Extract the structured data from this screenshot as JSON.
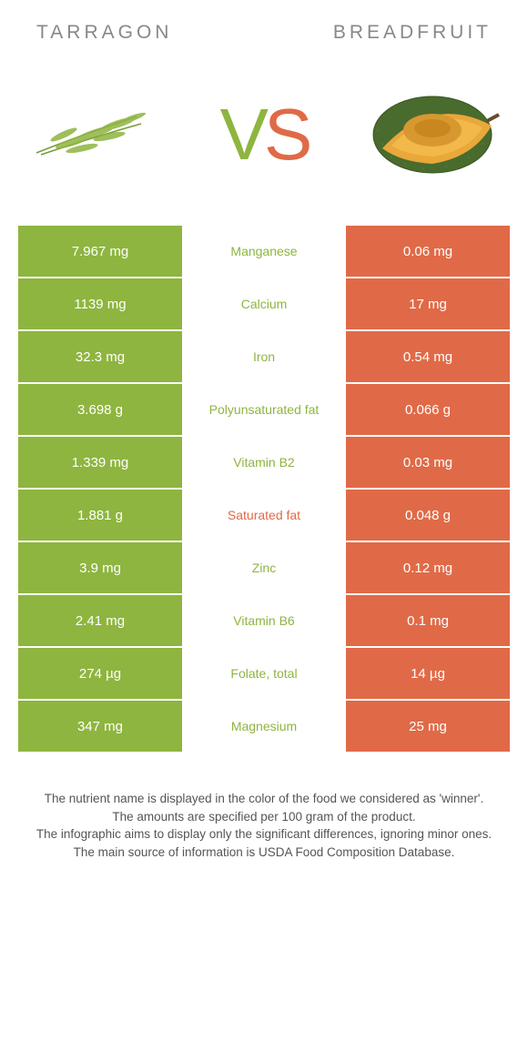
{
  "header": {
    "left": "Tarragon",
    "right": "Breadfruit"
  },
  "colors": {
    "left": "#8eb53f",
    "right": "#e06a47",
    "winner_left": "#8eb53f",
    "winner_right": "#e06a47"
  },
  "vs": {
    "v": "V",
    "s": "S"
  },
  "rows": [
    {
      "left": "7.967 mg",
      "label": "Manganese",
      "right": "0.06 mg",
      "winner": "left"
    },
    {
      "left": "1139 mg",
      "label": "Calcium",
      "right": "17 mg",
      "winner": "left"
    },
    {
      "left": "32.3 mg",
      "label": "Iron",
      "right": "0.54 mg",
      "winner": "left"
    },
    {
      "left": "3.698 g",
      "label": "Polyunsaturated fat",
      "right": "0.066 g",
      "winner": "left"
    },
    {
      "left": "1.339 mg",
      "label": "Vitamin B2",
      "right": "0.03 mg",
      "winner": "left"
    },
    {
      "left": "1.881 g",
      "label": "Saturated fat",
      "right": "0.048 g",
      "winner": "right"
    },
    {
      "left": "3.9 mg",
      "label": "Zinc",
      "right": "0.12 mg",
      "winner": "left"
    },
    {
      "left": "2.41 mg",
      "label": "Vitamin B6",
      "right": "0.1 mg",
      "winner": "left"
    },
    {
      "left": "274 µg",
      "label": "Folate, total",
      "right": "14 µg",
      "winner": "left"
    },
    {
      "left": "347 mg",
      "label": "Magnesium",
      "right": "25 mg",
      "winner": "left"
    }
  ],
  "footer": {
    "l1": "The nutrient name is displayed in the color of the food we considered as 'winner'.",
    "l2": "The amounts are specified per 100 gram of the product.",
    "l3": "The infographic aims to display only the significant differences, ignoring minor ones.",
    "l4": "The main source of information is USDA Food Composition Database."
  }
}
